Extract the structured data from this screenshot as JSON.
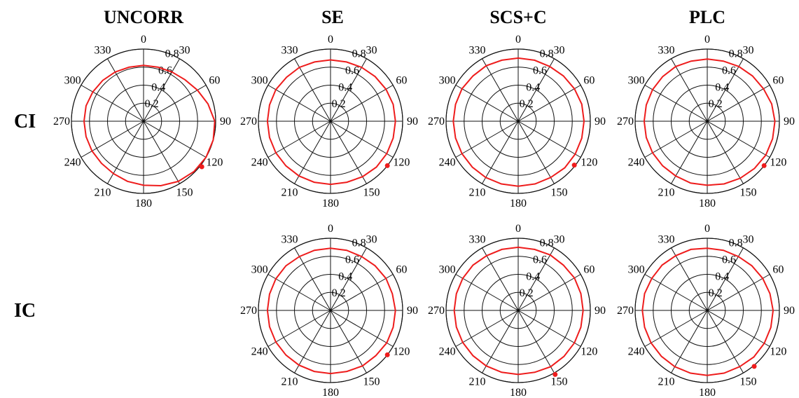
{
  "columns": [
    "UNCORR",
    "SE",
    "SCS+C",
    "PLC"
  ],
  "rows": [
    "CI",
    "IC"
  ],
  "colors": {
    "series": "#ee1c1c",
    "grid": "#111111"
  },
  "chart_data": {
    "type": "polar-line",
    "radial_ticks": [
      0.2,
      0.4,
      0.6,
      0.8
    ],
    "radial_range": [
      0,
      0.8
    ],
    "angle_ticks": [
      0,
      30,
      60,
      90,
      120,
      150,
      180,
      210,
      240,
      270,
      300,
      330
    ],
    "angle_direction": "clockwise-from-top",
    "grid": true,
    "panels": [
      {
        "row": "CI",
        "column": "UNCORR",
        "angles": [
          0,
          15,
          30,
          45,
          60,
          75,
          90,
          105,
          120,
          135,
          150,
          165,
          180,
          195,
          210,
          225,
          240,
          255,
          270,
          285,
          300,
          315,
          330,
          345
        ],
        "radius": [
          0.62,
          0.62,
          0.63,
          0.65,
          0.69,
          0.74,
          0.79,
          0.8,
          0.8,
          0.79,
          0.77,
          0.74,
          0.71,
          0.69,
          0.67,
          0.66,
          0.66,
          0.66,
          0.66,
          0.66,
          0.65,
          0.64,
          0.63,
          0.62
        ],
        "marker": {
          "angle": 128,
          "radius": 0.82
        }
      },
      {
        "row": "CI",
        "column": "SE",
        "angles": [
          0,
          15,
          30,
          45,
          60,
          75,
          90,
          105,
          120,
          135,
          150,
          165,
          180,
          195,
          210,
          225,
          240,
          255,
          270,
          285,
          300,
          315,
          330,
          345
        ],
        "radius": [
          0.68,
          0.68,
          0.69,
          0.7,
          0.71,
          0.72,
          0.72,
          0.72,
          0.72,
          0.72,
          0.71,
          0.7,
          0.7,
          0.7,
          0.7,
          0.7,
          0.7,
          0.7,
          0.7,
          0.7,
          0.7,
          0.69,
          0.69,
          0.68
        ],
        "marker": {
          "angle": 128,
          "radius": 0.8
        }
      },
      {
        "row": "CI",
        "column": "SCS+C",
        "angles": [
          0,
          15,
          30,
          45,
          60,
          75,
          90,
          105,
          120,
          135,
          150,
          165,
          180,
          195,
          210,
          225,
          240,
          255,
          270,
          285,
          300,
          315,
          330,
          345
        ],
        "radius": [
          0.7,
          0.7,
          0.7,
          0.71,
          0.72,
          0.73,
          0.73,
          0.73,
          0.73,
          0.73,
          0.72,
          0.72,
          0.72,
          0.72,
          0.72,
          0.72,
          0.72,
          0.72,
          0.72,
          0.72,
          0.72,
          0.71,
          0.71,
          0.7
        ],
        "marker": {
          "angle": 128,
          "radius": 0.79
        }
      },
      {
        "row": "CI",
        "column": "PLC",
        "angles": [
          0,
          15,
          30,
          45,
          60,
          75,
          90,
          105,
          120,
          135,
          150,
          165,
          180,
          195,
          210,
          225,
          240,
          255,
          270,
          285,
          300,
          315,
          330,
          345
        ],
        "radius": [
          0.69,
          0.69,
          0.7,
          0.71,
          0.72,
          0.74,
          0.75,
          0.75,
          0.75,
          0.74,
          0.73,
          0.72,
          0.71,
          0.71,
          0.7,
          0.7,
          0.7,
          0.7,
          0.7,
          0.7,
          0.7,
          0.7,
          0.7,
          0.69
        ],
        "marker": {
          "angle": 128,
          "radius": 0.8
        }
      },
      {
        "row": "IC",
        "column": "SE",
        "angles": [
          0,
          15,
          30,
          45,
          60,
          75,
          90,
          105,
          120,
          135,
          150,
          165,
          180,
          195,
          210,
          225,
          240,
          255,
          270,
          285,
          300,
          315,
          330,
          345
        ],
        "radius": [
          0.69,
          0.69,
          0.69,
          0.7,
          0.71,
          0.71,
          0.72,
          0.72,
          0.72,
          0.71,
          0.71,
          0.7,
          0.7,
          0.7,
          0.7,
          0.7,
          0.7,
          0.7,
          0.7,
          0.7,
          0.7,
          0.7,
          0.69,
          0.69
        ],
        "marker": {
          "angle": 128,
          "radius": 0.8
        }
      },
      {
        "row": "IC",
        "column": "SCS+C",
        "angles": [
          0,
          15,
          30,
          45,
          60,
          75,
          90,
          105,
          120,
          135,
          150,
          165,
          180,
          195,
          210,
          225,
          240,
          255,
          270,
          285,
          300,
          315,
          330,
          345
        ],
        "radius": [
          0.7,
          0.7,
          0.71,
          0.71,
          0.72,
          0.72,
          0.72,
          0.72,
          0.72,
          0.72,
          0.72,
          0.71,
          0.71,
          0.71,
          0.71,
          0.71,
          0.71,
          0.71,
          0.71,
          0.71,
          0.71,
          0.71,
          0.7,
          0.7
        ],
        "marker": {
          "angle": 150,
          "radius": 0.82
        }
      },
      {
        "row": "IC",
        "column": "PLC",
        "angles": [
          0,
          15,
          30,
          45,
          60,
          75,
          90,
          105,
          120,
          135,
          150,
          165,
          180,
          195,
          210,
          225,
          240,
          255,
          270,
          285,
          300,
          315,
          330,
          345
        ],
        "radius": [
          0.69,
          0.69,
          0.69,
          0.7,
          0.71,
          0.72,
          0.73,
          0.73,
          0.73,
          0.73,
          0.72,
          0.72,
          0.72,
          0.72,
          0.72,
          0.72,
          0.72,
          0.72,
          0.72,
          0.72,
          0.71,
          0.71,
          0.7,
          0.7
        ],
        "marker": {
          "angle": 140,
          "radius": 0.81
        }
      }
    ]
  }
}
